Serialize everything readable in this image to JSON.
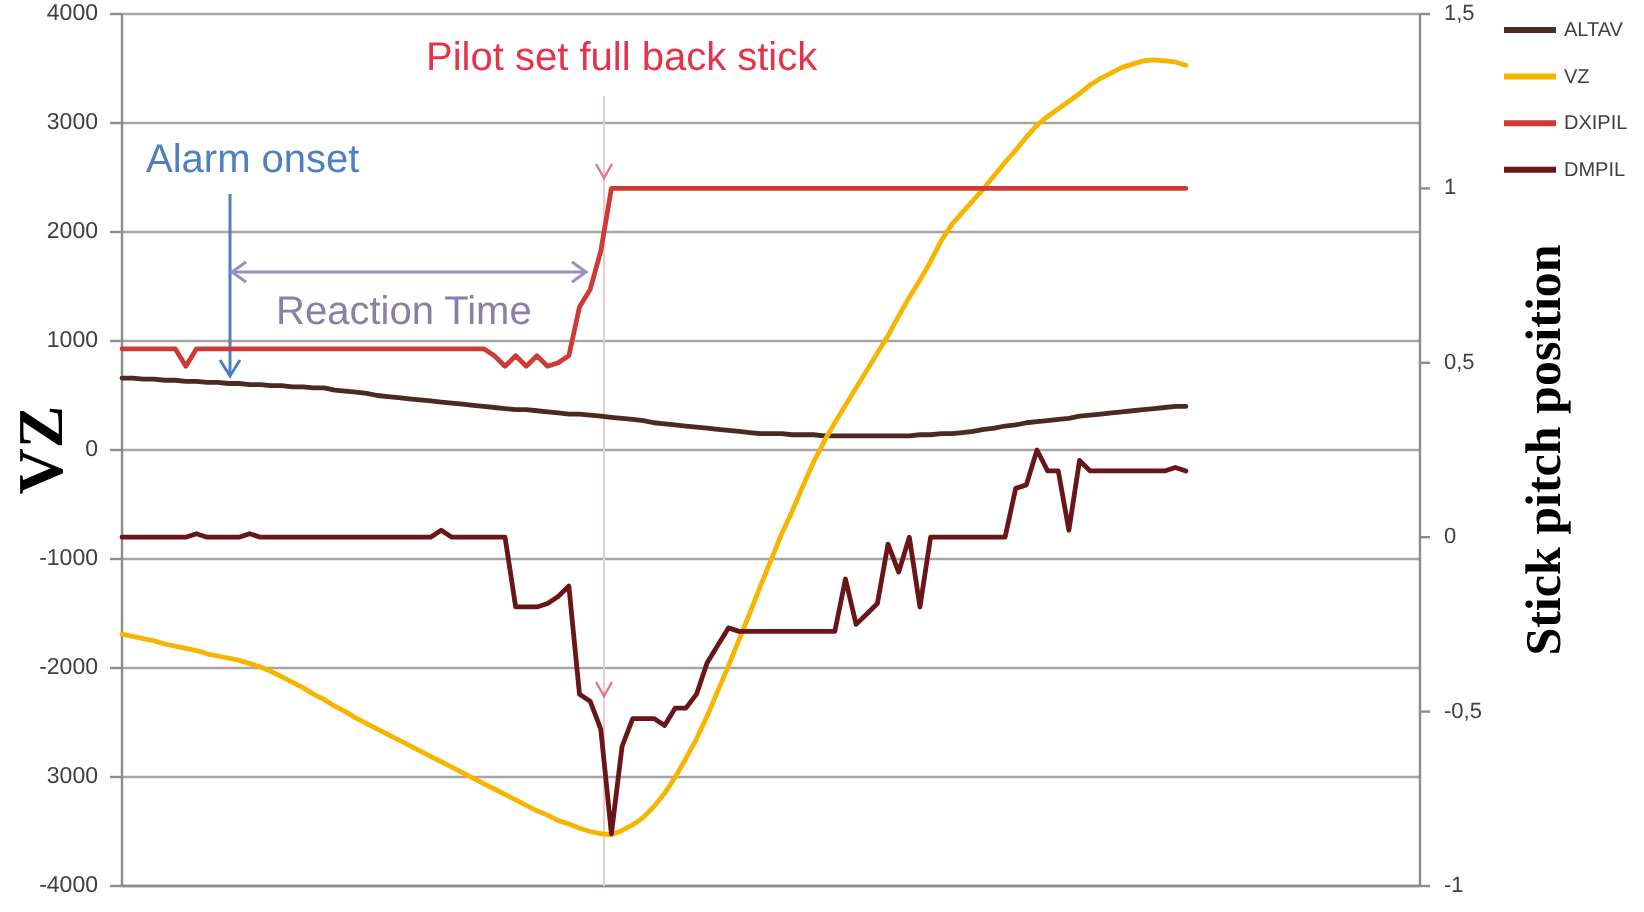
{
  "chart_data": {
    "type": "line",
    "categories": [
      null,
      null,
      null,
      null,
      null,
      null,
      null,
      null,
      null,
      null,
      null,
      null,
      null,
      null,
      null,
      null,
      null,
      null,
      null,
      null,
      null,
      null,
      null,
      null,
      null,
      null,
      null,
      null,
      null,
      null,
      null,
      null,
      null,
      null,
      null,
      null,
      null,
      null,
      null,
      null,
      null,
      null,
      null,
      null,
      null,
      null,
      null,
      null,
      null,
      null,
      null,
      null,
      null,
      null,
      null,
      null,
      null,
      null,
      null,
      null,
      null,
      null,
      null,
      null,
      null,
      null,
      null,
      null,
      null,
      null,
      null,
      null,
      null,
      null,
      null,
      null,
      null,
      null,
      null,
      null,
      null,
      null,
      null,
      null,
      null,
      null,
      null,
      null,
      null,
      null,
      null,
      null,
      null,
      null,
      null,
      null,
      null,
      null,
      null,
      null,
      null,
      null,
      null,
      null,
      null,
      null,
      null,
      null,
      null,
      null,
      null,
      null,
      null,
      null,
      null,
      null,
      null,
      null,
      null,
      null,
      null,
      null,
      null
    ],
    "series": [
      {
        "name": "ALTAV",
        "color": "#4a2a22",
        "values": [
          660,
          660,
          650,
          650,
          640,
          640,
          630,
          630,
          620,
          620,
          610,
          610,
          600,
          600,
          590,
          590,
          580,
          580,
          570,
          570,
          550,
          540,
          530,
          520,
          500,
          490,
          480,
          470,
          460,
          450,
          440,
          430,
          420,
          410,
          400,
          390,
          380,
          370,
          370,
          360,
          350,
          340,
          330,
          330,
          320,
          310,
          300,
          290,
          280,
          270,
          250,
          240,
          230,
          220,
          210,
          200,
          190,
          180,
          170,
          160,
          150,
          150,
          150,
          140,
          140,
          140,
          130,
          130,
          130,
          130,
          130,
          130,
          130,
          130,
          130,
          140,
          140,
          150,
          150,
          160,
          170,
          190,
          200,
          220,
          230,
          250,
          260,
          270,
          280,
          290,
          310,
          320,
          330,
          340,
          350,
          360,
          370,
          380,
          390,
          400,
          400,
          null,
          null,
          null,
          null,
          null,
          null,
          null,
          null,
          null,
          null,
          null,
          null,
          null,
          null,
          null,
          null,
          null,
          null,
          null,
          null,
          null,
          null
        ]
      },
      {
        "name": "VZ",
        "color": "#f7b500",
        "values": [
          -1690,
          -1710,
          -1730,
          -1750,
          -1780,
          -1800,
          -1820,
          -1840,
          -1870,
          -1890,
          -1910,
          -1930,
          -1960,
          -1990,
          -2030,
          -2080,
          -2130,
          -2180,
          -2240,
          -2290,
          -2350,
          -2400,
          -2460,
          -2510,
          -2560,
          -2610,
          -2660,
          -2710,
          -2760,
          -2810,
          -2860,
          -2910,
          -2960,
          -3010,
          -3060,
          -3110,
          -3160,
          -3210,
          -3260,
          -3310,
          -3350,
          -3400,
          -3430,
          -3470,
          -3500,
          -3520,
          -3530,
          -3490,
          -3440,
          -3370,
          -3270,
          -3150,
          -3000,
          -2830,
          -2650,
          -2440,
          -2210,
          -1980,
          -1740,
          -1500,
          -1250,
          -1010,
          -770,
          -560,
          -330,
          -110,
          80,
          250,
          410,
          570,
          730,
          890,
          1050,
          1230,
          1400,
          1560,
          1730,
          1920,
          2070,
          2180,
          2290,
          2400,
          2520,
          2640,
          2750,
          2870,
          2980,
          3060,
          3130,
          3200,
          3270,
          3350,
          3410,
          3460,
          3510,
          3540,
          3570,
          3580,
          3570,
          3560,
          3530,
          null,
          null,
          null,
          null,
          null,
          null,
          null,
          null,
          null,
          null,
          null,
          null,
          null,
          null,
          null,
          null,
          null,
          null,
          null,
          null,
          null,
          null
        ]
      },
      {
        "name": "DXIPIL",
        "color": "#d03a36",
        "axis": "y2",
        "values": [
          0.54,
          0.54,
          0.54,
          0.54,
          0.54,
          0.54,
          0.49,
          0.54,
          0.54,
          0.54,
          0.54,
          0.54,
          0.54,
          0.54,
          0.54,
          0.54,
          0.54,
          0.54,
          0.54,
          0.54,
          0.54,
          0.54,
          0.54,
          0.54,
          0.54,
          0.54,
          0.54,
          0.54,
          0.54,
          0.54,
          0.54,
          0.54,
          0.54,
          0.54,
          0.54,
          0.52,
          0.49,
          0.52,
          0.49,
          0.52,
          0.49,
          0.5,
          0.52,
          0.66,
          0.71,
          0.82,
          1,
          1,
          1,
          1,
          1,
          1,
          1,
          1,
          1,
          1,
          1,
          1,
          1,
          1,
          1,
          1,
          1,
          1,
          1,
          1,
          1,
          1,
          1,
          1,
          1,
          1,
          1,
          1,
          1,
          1,
          1,
          1,
          1,
          1,
          1,
          1,
          1,
          1,
          1,
          1,
          1,
          1,
          1,
          1,
          1,
          1,
          1,
          1,
          1,
          1,
          1,
          1,
          1,
          1,
          1,
          null,
          null,
          null,
          null,
          null,
          null,
          null,
          null,
          null,
          null,
          null,
          null,
          null,
          null,
          null,
          null,
          null,
          null,
          null,
          null,
          null,
          null
        ]
      },
      {
        "name": "DMPIL",
        "color": "#6a1518",
        "axis": "y2",
        "values": [
          0,
          0,
          0,
          0,
          0,
          0,
          0,
          0.01,
          0,
          0,
          0,
          0,
          0.01,
          0,
          0,
          0,
          0,
          0,
          0,
          0,
          0,
          0,
          0,
          0,
          0,
          0,
          0,
          0,
          0,
          0,
          0.02,
          0,
          0,
          0,
          0,
          0,
          0,
          -0.2,
          -0.2,
          -0.2,
          -0.19,
          -0.17,
          -0.14,
          -0.45,
          -0.47,
          -0.55,
          -0.85,
          -0.6,
          -0.52,
          -0.52,
          -0.52,
          -0.54,
          -0.49,
          -0.49,
          -0.45,
          -0.36,
          -0.31,
          -0.26,
          -0.27,
          -0.27,
          -0.27,
          -0.27,
          -0.27,
          -0.27,
          -0.27,
          -0.27,
          -0.27,
          -0.27,
          -0.12,
          -0.25,
          -0.22,
          -0.19,
          -0.02,
          -0.1,
          0,
          -0.2,
          0,
          0,
          0,
          0,
          0,
          0,
          0,
          0,
          0.14,
          0.15,
          0.25,
          0.19,
          0.19,
          0.02,
          0.22,
          0.19,
          0.19,
          0.19,
          0.19,
          0.19,
          0.19,
          0.19,
          0.19,
          0.2,
          0.19,
          null,
          null,
          null,
          null,
          null,
          null,
          null,
          null,
          null,
          null,
          null,
          null,
          null,
          null,
          null,
          null,
          null,
          null,
          null,
          null,
          null,
          null
        ]
      }
    ],
    "ylabel": "VZ",
    "y2label": "Stick pitch position",
    "ylim": [
      -4000,
      4000
    ],
    "yticks": [
      -4000,
      {
        "value": -3000,
        "label": "3000"
      },
      -2000,
      -1000,
      0,
      1000,
      2000,
      3000,
      4000
    ],
    "y2lim": [
      -1,
      1.5
    ],
    "y2ticks": [
      -1,
      {
        "value": -0.5,
        "label": "-0,5"
      },
      0,
      {
        "value": 0.5,
        "label": "0,5"
      },
      1,
      {
        "value": 1.5,
        "label": "1,5"
      }
    ],
    "grid": "y",
    "legend": "top right",
    "annotations": [
      "Pilot set full back stick",
      "Alarm onset",
      "Reaction Time"
    ]
  }
}
